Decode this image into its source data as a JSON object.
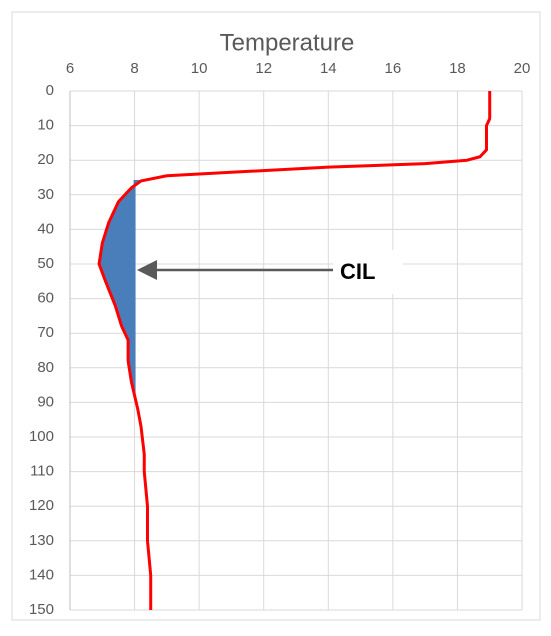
{
  "chart_data": {
    "type": "line",
    "x_label": "Temperature",
    "series": [
      {
        "color": "#ff0000",
        "x": [
          19,
          19,
          18.9,
          18.9,
          18.7,
          18.3,
          17,
          14,
          11,
          9,
          8.2,
          7.9,
          7.5,
          7.2,
          7.0,
          6.9,
          7.1,
          7.4,
          7.6,
          7.8,
          7.8,
          7.9,
          8.0,
          8.1,
          8.2,
          8.3,
          8.3,
          8.4,
          8.4,
          8.5,
          8.5
        ],
        "y": [
          0,
          8,
          10,
          17,
          19,
          20,
          21,
          22,
          23.5,
          24.5,
          26,
          28,
          32,
          38,
          44,
          50,
          55,
          62,
          68,
          72,
          78,
          84,
          88,
          92,
          97,
          105,
          110,
          120,
          130,
          140,
          150
        ]
      }
    ],
    "cil": {
      "label": "CIL",
      "color": "#4a7ebb",
      "top": 26,
      "bottom": 88,
      "boundary": 8
    },
    "xlim": [
      6,
      20
    ],
    "xticks": [
      6,
      8,
      10,
      12,
      14,
      16,
      18,
      20
    ],
    "ylim": [
      0,
      150
    ],
    "yticks": [
      0,
      10,
      20,
      30,
      40,
      50,
      60,
      70,
      80,
      90,
      100,
      110,
      120,
      130,
      140,
      150
    ],
    "y_inverted": true,
    "x_axis_position": "top",
    "grid": true
  }
}
